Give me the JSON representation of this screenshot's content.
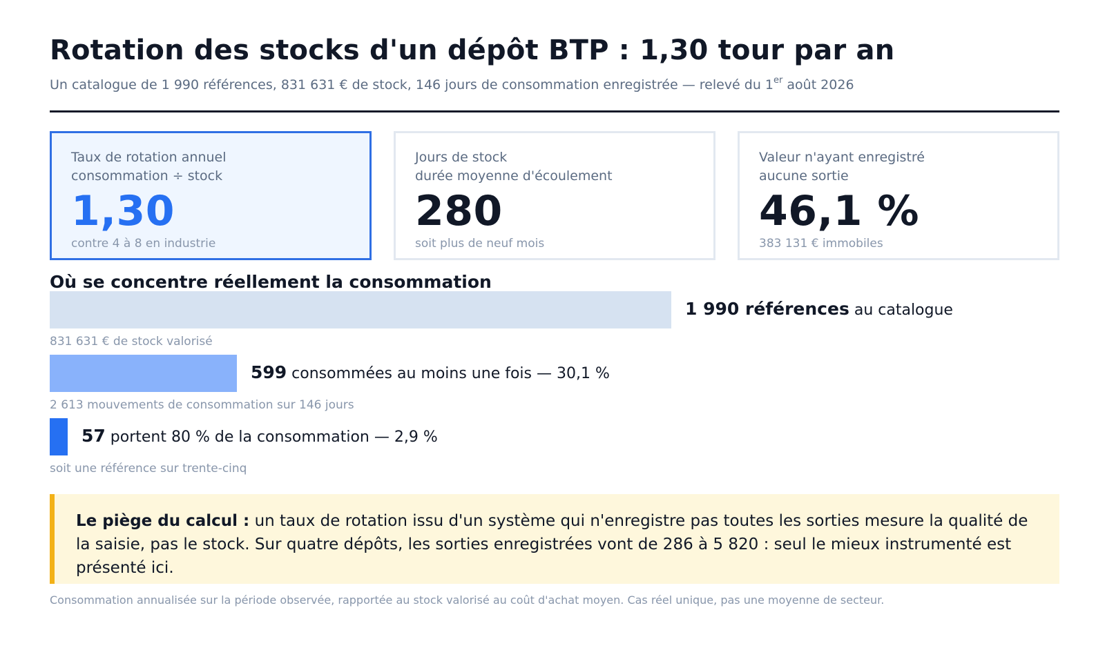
{
  "header": {
    "title": "Rotation des stocks d'un dépôt BTP : 1,30 tour par an",
    "subtitle_main": "Un catalogue de 1 990 références, 831 631 € de stock, 146 jours de consommation enregistrée — relevé du 1",
    "subtitle_sup": "er",
    "subtitle_end": " août 2026"
  },
  "kpis": [
    {
      "label_line1": "Taux de rotation annuel",
      "label_line2": "consommation ÷ stock",
      "value": "1,30",
      "note": "contre 4 à 8 en industrie"
    },
    {
      "label_line1": "Jours de stock",
      "label_line2": "durée moyenne d'écoulement",
      "value": "280",
      "note": "soit plus de neuf mois"
    },
    {
      "label_line1": "Valeur n'ayant enregistré",
      "label_line2": "aucune sortie",
      "value": "46,1 %",
      "note": "383 131 € immobiles"
    }
  ],
  "section_title": "Où se concentre réellement la consommation",
  "chart_data": {
    "type": "bar",
    "orientation": "horizontal",
    "title": "Où se concentre réellement la consommation",
    "categories": [
      "au catalogue",
      "consommées au moins une fois",
      "portent 80 % de la consommation"
    ],
    "values": [
      1990,
      599,
      57
    ],
    "series": [
      {
        "values": [
          1990,
          599,
          57
        ]
      }
    ],
    "bars": [
      {
        "value": 1990,
        "value_label": "1 990 références",
        "text": " au catalogue",
        "sub": "831 631 € de stock valorisé",
        "color": "#d6e2f1"
      },
      {
        "value": 599,
        "value_label": "599",
        "text": " consommées au moins une fois — 30,1 %",
        "sub": "2 613 mouvements de consommation sur 146 jours",
        "color": "#89b2fb"
      },
      {
        "value": 57,
        "value_label": "57",
        "text": " portent 80 % de la consommation — 2,9 %",
        "sub": "soit une référence sur trente-cinq",
        "color": "#2670f2"
      }
    ],
    "xlim": [
      0,
      1990
    ],
    "grid": false,
    "legend": "none"
  },
  "callout": {
    "bold": "Le piège du calcul :",
    "text": " un taux de rotation issu d'un système qui n'enregistre pas toutes les sorties mesure la qualité de la saisie, pas le stock. Sur quatre dépôts, les sorties enregistrées vont de 286 à 5 820 : seul le mieux instrumenté est présenté ici."
  },
  "footnote": "Consommation annualisée sur la période observée, rapportée au stock valorisé au coût d'achat moyen. Cas réel unique, pas une moyenne de secteur.",
  "colors": {
    "accent": "#2670f2",
    "highlight_border": "#2f6fe4",
    "callout_border": "#f3b117",
    "callout_bg": "#fef7dc"
  }
}
